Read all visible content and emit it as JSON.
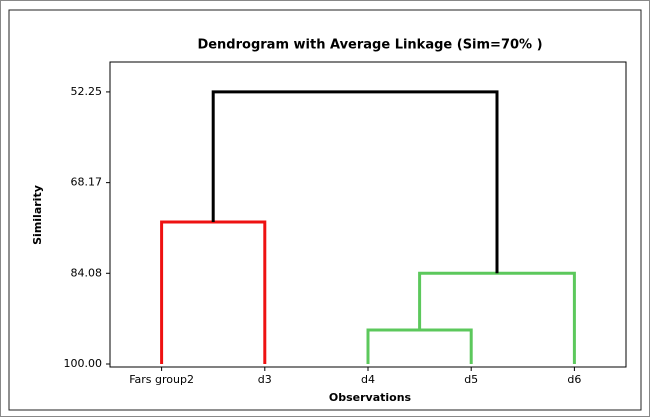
{
  "chart_data": {
    "type": "dendrogram",
    "title": "Dendrogram with Average Linkage (Sim=70% )",
    "x_label": "Observations",
    "y_label": "Similarity",
    "categories": [
      "Fars group2",
      "d3",
      "d4",
      "d5",
      "d6"
    ],
    "links": [
      {
        "children": [
          2,
          3
        ],
        "height": 94.03,
        "color": "#5cc85c"
      },
      {
        "children": [
          5,
          4
        ],
        "height": 84.08,
        "color": "#5cc85c"
      },
      {
        "children": [
          0,
          1
        ],
        "height": 75.08,
        "color": "#ee1111"
      },
      {
        "children": [
          7,
          6
        ],
        "height": 52.25,
        "color": "#000000"
      }
    ],
    "ylim": [
      100,
      47
    ],
    "yticks": [
      {
        "value": 52.25,
        "label": "52.25"
      },
      {
        "value": 68.17,
        "label": "68.17"
      },
      {
        "value": 84.08,
        "label": "84.08"
      },
      {
        "value": 100,
        "label": "100.00"
      }
    ],
    "grid": false
  }
}
